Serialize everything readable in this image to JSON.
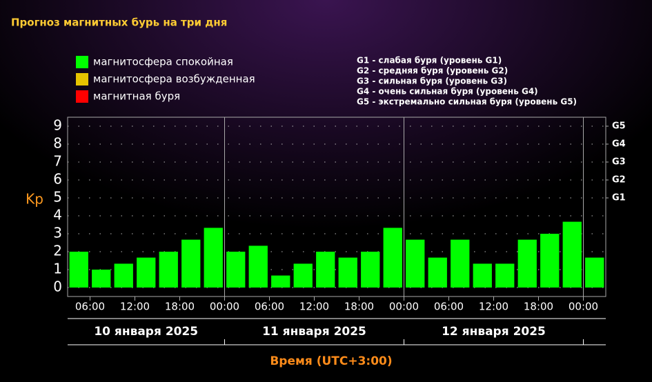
{
  "chart_data": {
    "type": "bar",
    "title": "Прогноз магнитных бурь на три дня",
    "legend": [
      {
        "name": "магнитосфера спокойная",
        "color": "#00ff00"
      },
      {
        "name": "магнитосфера возбужденная",
        "color": "#e6c400"
      },
      {
        "name": "магнитная буря",
        "color": "#ff0000"
      }
    ],
    "g_legend": [
      "G1 - слабая буря (уровень G1)",
      "G2 - средняя буря (уровень G2)",
      "G3 - сильная буря (уровень G3)",
      "G4 - очень сильная буря (уровень G4)",
      "G5 - экстремально сильная буря (уровень G5)"
    ],
    "ylabel": "Kp",
    "xlabel": "Время (UTC+3:00)",
    "categories": [
      "06:00",
      null,
      "12:00",
      null,
      "18:00",
      null,
      "00:00",
      null,
      "06:00",
      null,
      "12:00",
      null,
      "18:00",
      null,
      "00:00",
      null,
      "06:00",
      null,
      "12:00",
      null,
      "18:00",
      null,
      "00:00",
      null
    ],
    "values": [
      2,
      1,
      1.33,
      1.67,
      2,
      2.67,
      3.33,
      2,
      2.33,
      0.67,
      1.33,
      2,
      1.67,
      2,
      3.33,
      2.67,
      1.67,
      2.67,
      1.33,
      1.33,
      2.67,
      3,
      3.67,
      1.67
    ],
    "color": "#00ff00",
    "days": [
      "10 января 2025",
      "11 января 2025",
      "12 января 2025"
    ],
    "ylim": [
      -0.5,
      9.5
    ],
    "yticks": [
      0,
      1,
      2,
      3,
      4,
      5,
      6,
      7,
      8,
      9
    ],
    "y2ticks": [
      {
        "value": 5,
        "label": "G1"
      },
      {
        "value": 6,
        "label": "G2"
      },
      {
        "value": 7,
        "label": "G3"
      },
      {
        "value": 8,
        "label": "G4"
      },
      {
        "value": 9,
        "label": "G5"
      }
    ],
    "grid": true
  }
}
